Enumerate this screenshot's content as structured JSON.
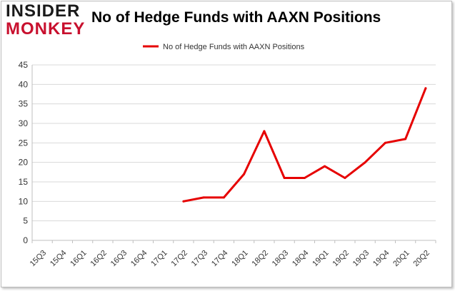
{
  "logo": {
    "line1": "INSIDER",
    "line2": "MONKEY",
    "line1_color": "#1a1a1a",
    "line2_color": "#c8102e"
  },
  "chart_data": {
    "type": "line",
    "title": "No of Hedge Funds with AAXN Positions",
    "xlabel": "",
    "ylabel": "",
    "legend": "top-center",
    "grid": true,
    "ylim": [
      0,
      45
    ],
    "yticks": [
      0,
      5,
      10,
      15,
      20,
      25,
      30,
      35,
      40,
      45
    ],
    "categories": [
      "15Q3",
      "15Q4",
      "16Q1",
      "16Q2",
      "16Q3",
      "16Q4",
      "17Q1",
      "17Q2",
      "17Q3",
      "17Q4",
      "18Q1",
      "18Q2",
      "18Q3",
      "18Q4",
      "19Q1",
      "19Q2",
      "19Q3",
      "19Q4",
      "20Q1",
      "20Q2"
    ],
    "series": [
      {
        "name": "No of Hedge Funds with AAXN Positions",
        "color": "#e60000",
        "values": [
          null,
          null,
          null,
          null,
          null,
          null,
          null,
          10,
          11,
          11,
          17,
          28,
          16,
          16,
          19,
          16,
          20,
          25,
          26,
          39
        ]
      }
    ]
  }
}
